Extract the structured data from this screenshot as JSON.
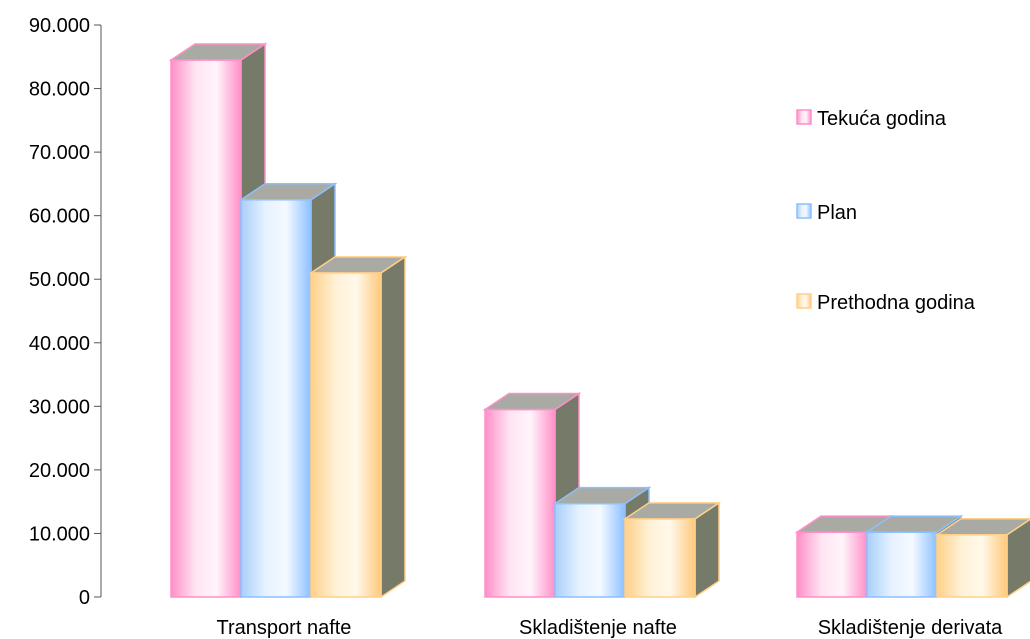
{
  "chart_data": {
    "type": "bar",
    "style": "3d-clustered-column",
    "categories": [
      "Transport nafte",
      "Skladištenje nafte",
      "Skladištenje derivata"
    ],
    "series": [
      {
        "name": "Tekuća godina",
        "values": [
          84500,
          29500,
          10200
        ],
        "color": "#ff8fc8"
      },
      {
        "name": "Plan",
        "values": [
          62500,
          14700,
          10200
        ],
        "color": "#8cc0ff"
      },
      {
        "name": "Prethodna godina",
        "values": [
          51000,
          12300,
          9800
        ],
        "color": "#ffd089"
      }
    ],
    "ylim": [
      0,
      90000
    ],
    "yticks": [
      "0",
      "10.000",
      "20.000",
      "30.000",
      "40.000",
      "50.000",
      "60.000",
      "70.000",
      "80.000",
      "90.000"
    ],
    "grid": false,
    "legend_position": "right",
    "title": "",
    "xlabel": "",
    "ylabel": ""
  }
}
